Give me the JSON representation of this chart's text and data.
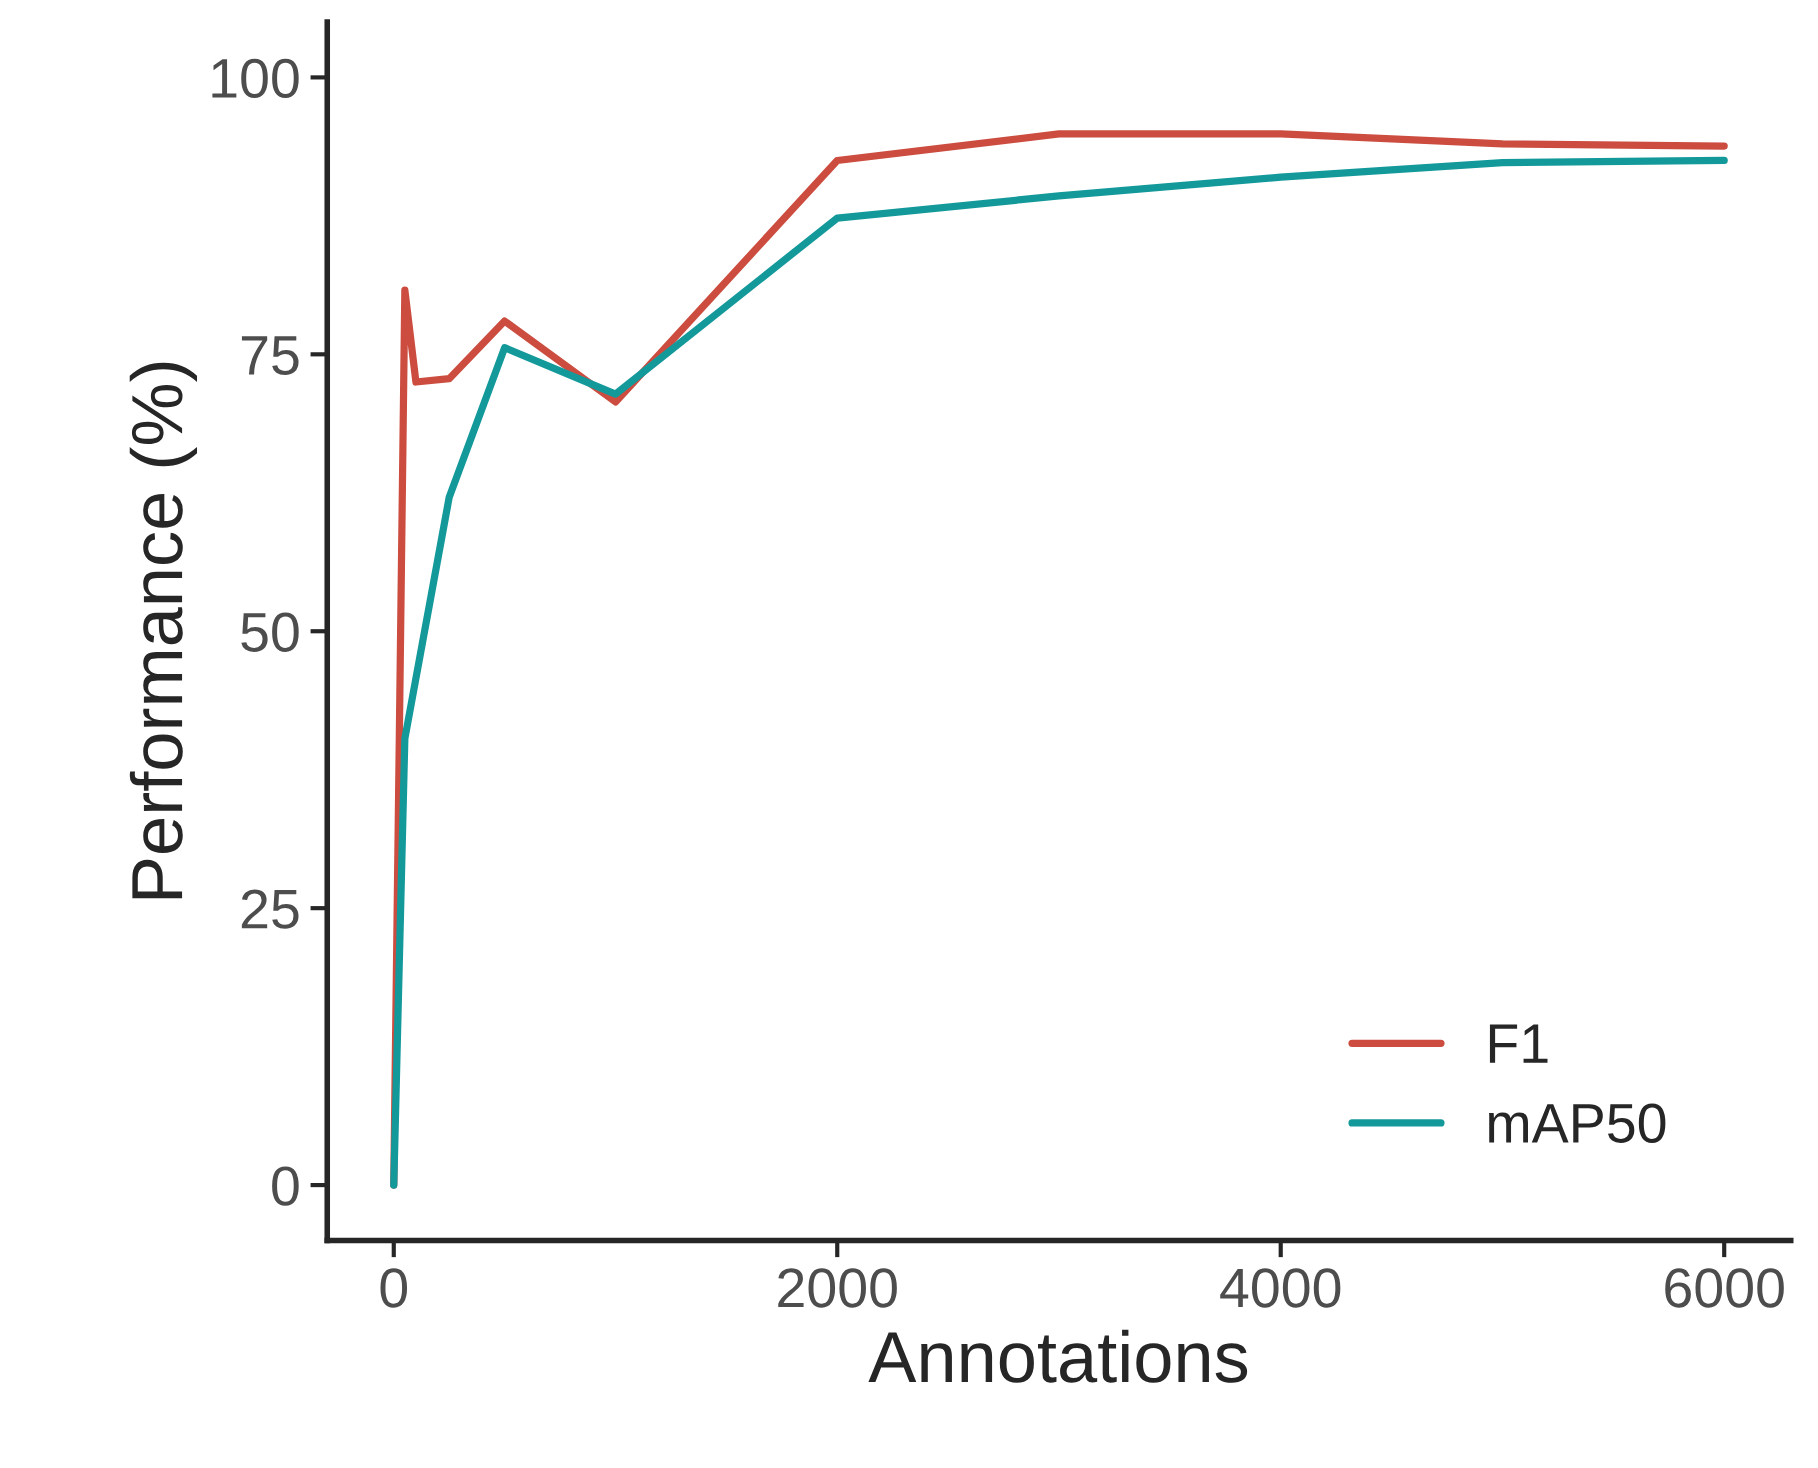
{
  "chart_data": {
    "type": "line",
    "xlabel": "Annotations",
    "ylabel": "Performance (%)",
    "series": [
      {
        "name": "F1",
        "color": "#cc4d40",
        "x": [
          0,
          50,
          100,
          250,
          500,
          1000,
          2000,
          3000,
          4000,
          5000,
          6000
        ],
        "values": [
          0,
          80.8,
          72.5,
          72.8,
          78.0,
          70.7,
          92.5,
          94.9,
          94.9,
          94.0,
          93.8
        ]
      },
      {
        "name": "mAP50",
        "color": "#14999b",
        "x": [
          0,
          50,
          250,
          500,
          1000,
          2000,
          3000,
          4000,
          5000,
          6000
        ],
        "values": [
          0,
          40.3,
          62.1,
          75.6,
          71.4,
          87.3,
          89.3,
          91.0,
          92.3,
          92.5
        ]
      }
    ],
    "xlim": [
      -300,
      6300
    ],
    "xticks": [
      0,
      2000,
      4000,
      6000
    ],
    "ylim": [
      -5,
      105
    ],
    "yticks": [
      0,
      25,
      50,
      75,
      100
    ],
    "grid": false,
    "legend": "bottom right",
    "marker": "none",
    "line_style": "solid"
  }
}
